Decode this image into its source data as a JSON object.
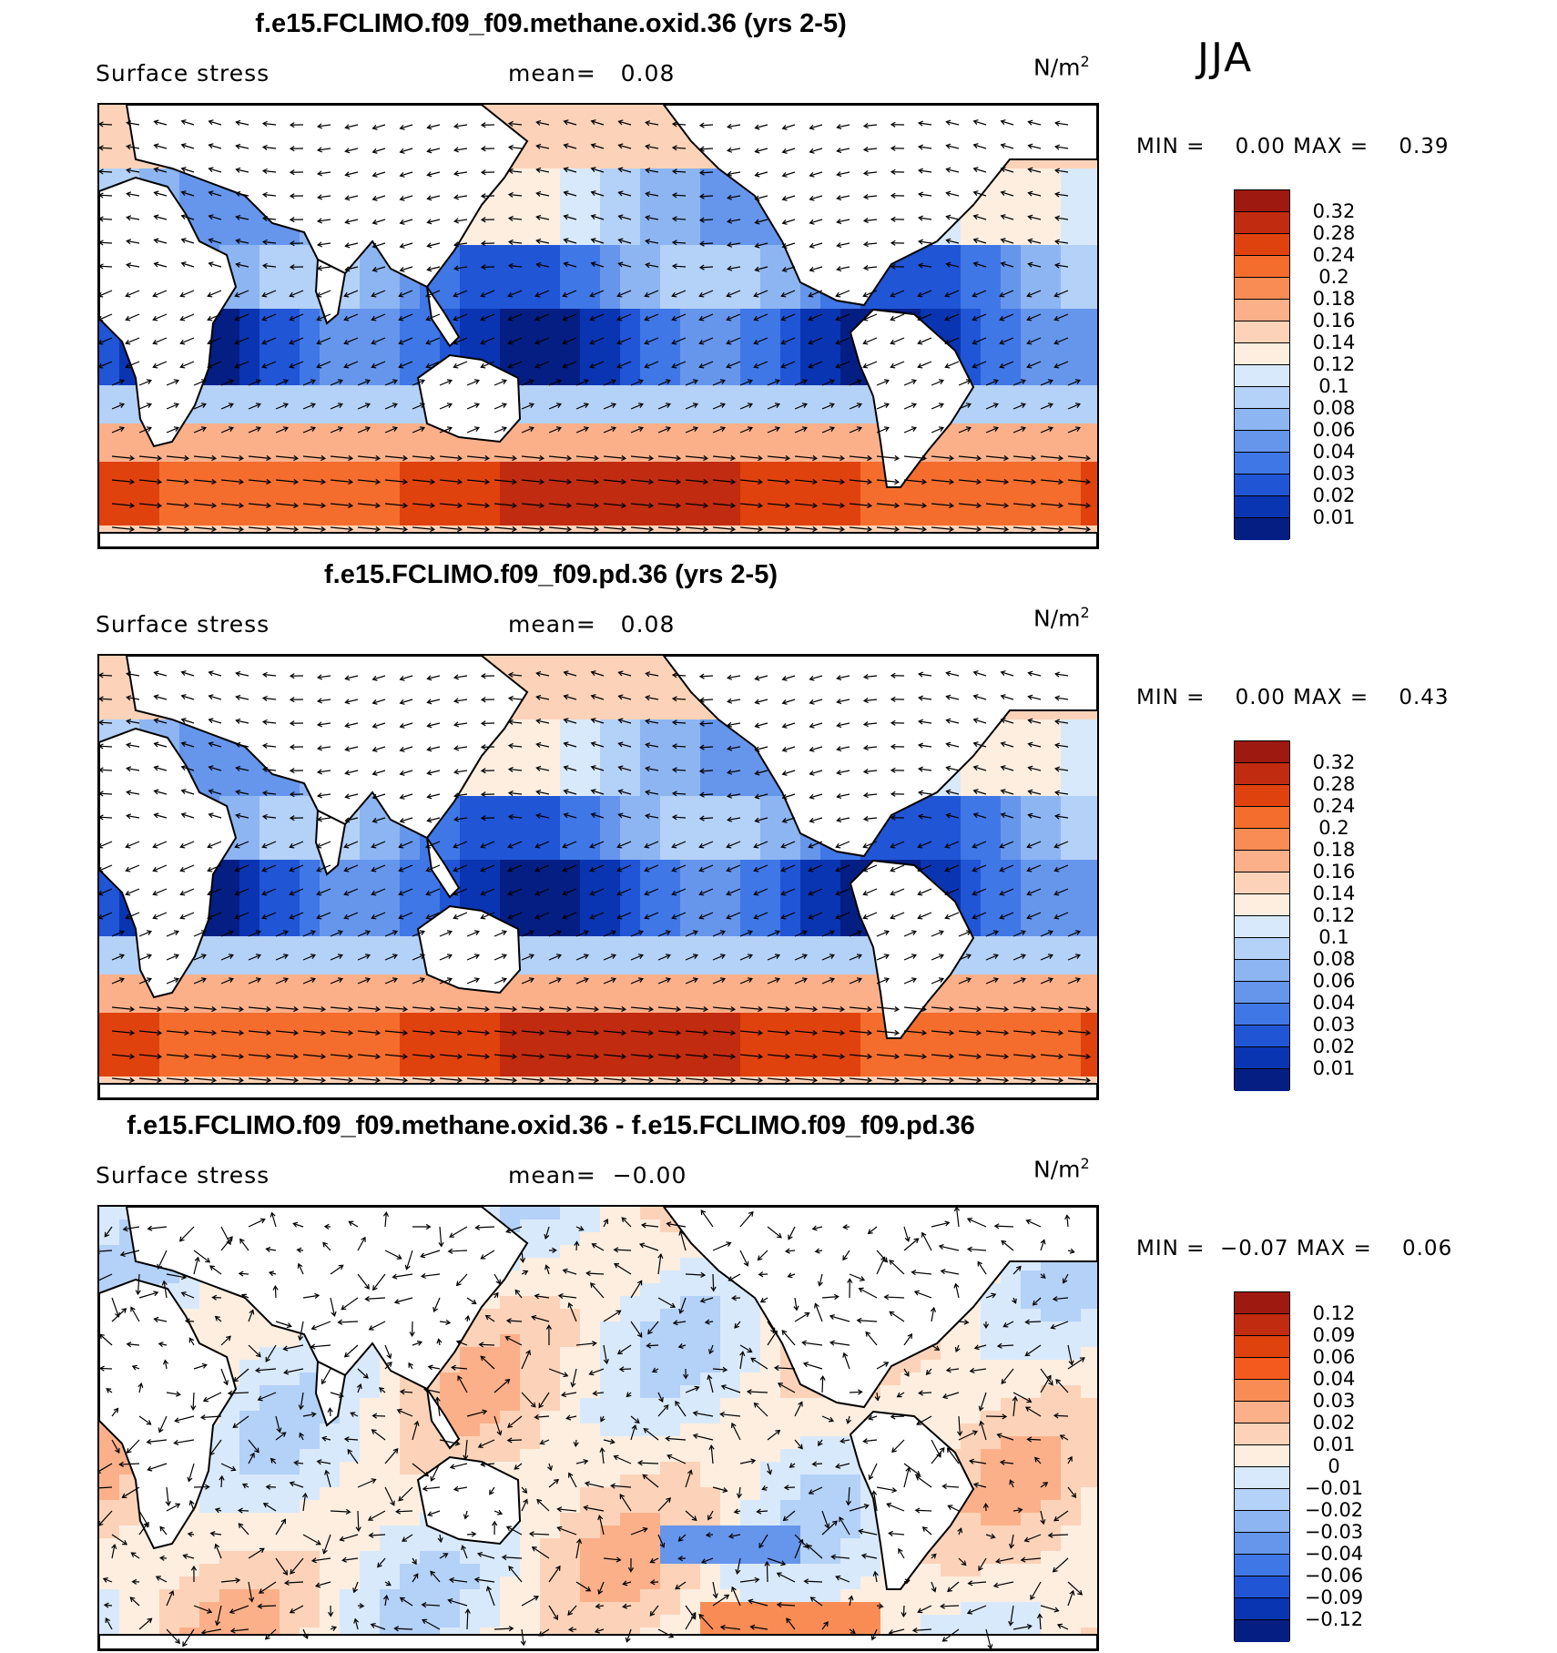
{
  "season": "JJA",
  "panels": [
    {
      "title": "f.e15.FCLIMO.f09_f09.methane.oxid.36 (yrs 2-5)",
      "variable": "Surface stress",
      "mean_label": "mean=   0.08",
      "units": "N/m",
      "units_exp": "2",
      "minmax": "MIN =    0.00 MAX =    0.39",
      "colorbar": {
        "labels": [
          "0.32",
          "0.28",
          "0.24",
          "0.2",
          "0.18",
          "0.16",
          "0.14",
          "0.12",
          "0.1",
          "0.08",
          "0.06",
          "0.04",
          "0.03",
          "0.02",
          "0.01"
        ],
        "colors": [
          "#9e1a10",
          "#c12b0f",
          "#e0420e",
          "#f46d2d",
          "#f98c55",
          "#fbb08a",
          "#fcd3b8",
          "#fdeee0",
          "#d8e9fb",
          "#b4d1f7",
          "#8db5f2",
          "#6696ec",
          "#3f77e6",
          "#2055d6",
          "#0a35b2",
          "#051e84"
        ]
      }
    },
    {
      "title": "f.e15.FCLIMO.f09_f09.pd.36 (yrs 2-5)",
      "variable": "Surface stress",
      "mean_label": "mean=   0.08",
      "units": "N/m",
      "units_exp": "2",
      "minmax": "MIN =    0.00 MAX =    0.43",
      "colorbar": {
        "labels": [
          "0.32",
          "0.28",
          "0.24",
          "0.2",
          "0.18",
          "0.16",
          "0.14",
          "0.12",
          "0.1",
          "0.08",
          "0.06",
          "0.04",
          "0.03",
          "0.02",
          "0.01"
        ],
        "colors": [
          "#9e1a10",
          "#c12b0f",
          "#e0420e",
          "#f46d2d",
          "#f98c55",
          "#fbb08a",
          "#fcd3b8",
          "#fdeee0",
          "#d8e9fb",
          "#b4d1f7",
          "#8db5f2",
          "#6696ec",
          "#3f77e6",
          "#2055d6",
          "#0a35b2",
          "#051e84"
        ]
      }
    },
    {
      "title": "f.e15.FCLIMO.f09_f09.methane.oxid.36 - f.e15.FCLIMO.f09_f09.pd.36",
      "variable": "Surface stress",
      "mean_label": "mean=  −0.00",
      "units": "N/m",
      "units_exp": "2",
      "minmax": "MIN =  −0.07 MAX =    0.06",
      "colorbar": {
        "labels": [
          "0.12",
          "0.09",
          "0.06",
          "0.04",
          "0.03",
          "0.02",
          "0.01",
          "0",
          "−0.01",
          "−0.02",
          "−0.03",
          "−0.04",
          "−0.06",
          "−0.09",
          "−0.12"
        ],
        "colors": [
          "#9e1a10",
          "#c12b0f",
          "#e0420e",
          "#f45a1e",
          "#f98c55",
          "#fbb08a",
          "#fcd3b8",
          "#fdeee0",
          "#d8e9fb",
          "#b4d1f7",
          "#8db5f2",
          "#6696ec",
          "#3f77e6",
          "#2055d6",
          "#0a35b2",
          "#051e84"
        ]
      }
    }
  ]
}
